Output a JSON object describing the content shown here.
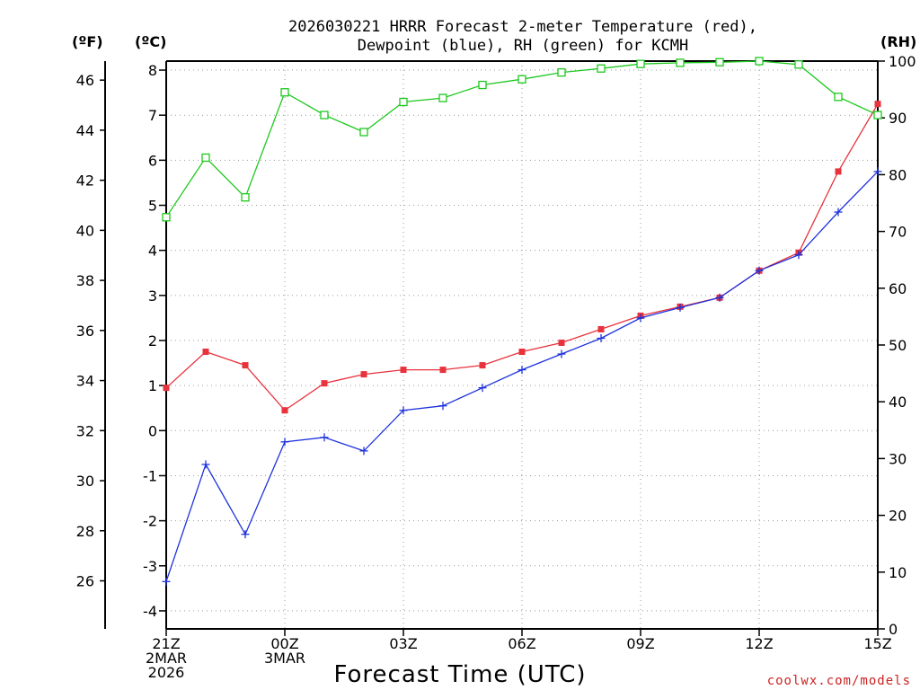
{
  "chart_data": {
    "type": "line",
    "title_lines": [
      "2026030221 HRRR Forecast 2-meter Temperature (red),",
      "Dewpoint (blue), RH (green) for KCMH"
    ],
    "units": {
      "fahrenheit": "(ºF)",
      "celsius": "(ºC)",
      "rh": "(RH)"
    },
    "xlabel": "Forecast Time (UTC)",
    "credit": "coolwx.com/models",
    "x_hours": [
      0,
      1,
      2,
      3,
      4,
      5,
      6,
      7,
      8,
      9,
      10,
      11,
      12,
      13,
      14,
      15,
      16,
      17,
      18
    ],
    "x_ticks": [
      {
        "hour": 0,
        "lines": [
          "21Z",
          "2MAR",
          "2026"
        ]
      },
      {
        "hour": 3,
        "lines": [
          "00Z",
          "3MAR"
        ]
      },
      {
        "hour": 6,
        "lines": [
          "03Z"
        ]
      },
      {
        "hour": 9,
        "lines": [
          "06Z"
        ]
      },
      {
        "hour": 12,
        "lines": [
          "09Z"
        ]
      },
      {
        "hour": 15,
        "lines": [
          "12Z"
        ]
      },
      {
        "hour": 18,
        "lines": [
          "15Z"
        ]
      }
    ],
    "celsius_axis": {
      "range": [
        -4.4,
        8.2
      ],
      "ticks": [
        -4,
        -3,
        -2,
        -1,
        0,
        1,
        2,
        3,
        4,
        5,
        6,
        7,
        8
      ]
    },
    "fahrenheit_axis": {
      "ticks": [
        26,
        28,
        30,
        32,
        34,
        36,
        38,
        40,
        42,
        44,
        46
      ]
    },
    "rh_axis": {
      "range": [
        0,
        100
      ],
      "ticks": [
        0,
        10,
        20,
        30,
        40,
        50,
        60,
        70,
        80,
        90,
        100
      ]
    },
    "series": [
      {
        "name": "Temperature",
        "axis": "celsius",
        "color": "#e8323c",
        "marker": "filled-square",
        "values": [
          0.95,
          1.75,
          1.45,
          0.45,
          1.05,
          1.25,
          1.35,
          1.35,
          1.45,
          1.75,
          1.95,
          2.25,
          2.55,
          2.75,
          2.95,
          3.55,
          3.95,
          5.75,
          7.25
        ]
      },
      {
        "name": "Dewpoint",
        "axis": "celsius",
        "color": "#1e32dc",
        "marker": "plus",
        "values": [
          -3.35,
          -0.75,
          -2.3,
          -0.25,
          -0.15,
          -0.45,
          0.45,
          0.55,
          0.95,
          1.35,
          1.7,
          2.05,
          2.5,
          2.73,
          2.95,
          3.55,
          3.9,
          4.85,
          5.75
        ]
      },
      {
        "name": "RH",
        "axis": "rh",
        "color": "#1ec81e",
        "marker": "open-square",
        "values": [
          72.5,
          83,
          76,
          94.5,
          90.5,
          87.5,
          92.8,
          93.5,
          95.8,
          96.8,
          98,
          98.7,
          99.5,
          99.7,
          99.8,
          100,
          99.4,
          93.7,
          90.5
        ]
      }
    ]
  }
}
